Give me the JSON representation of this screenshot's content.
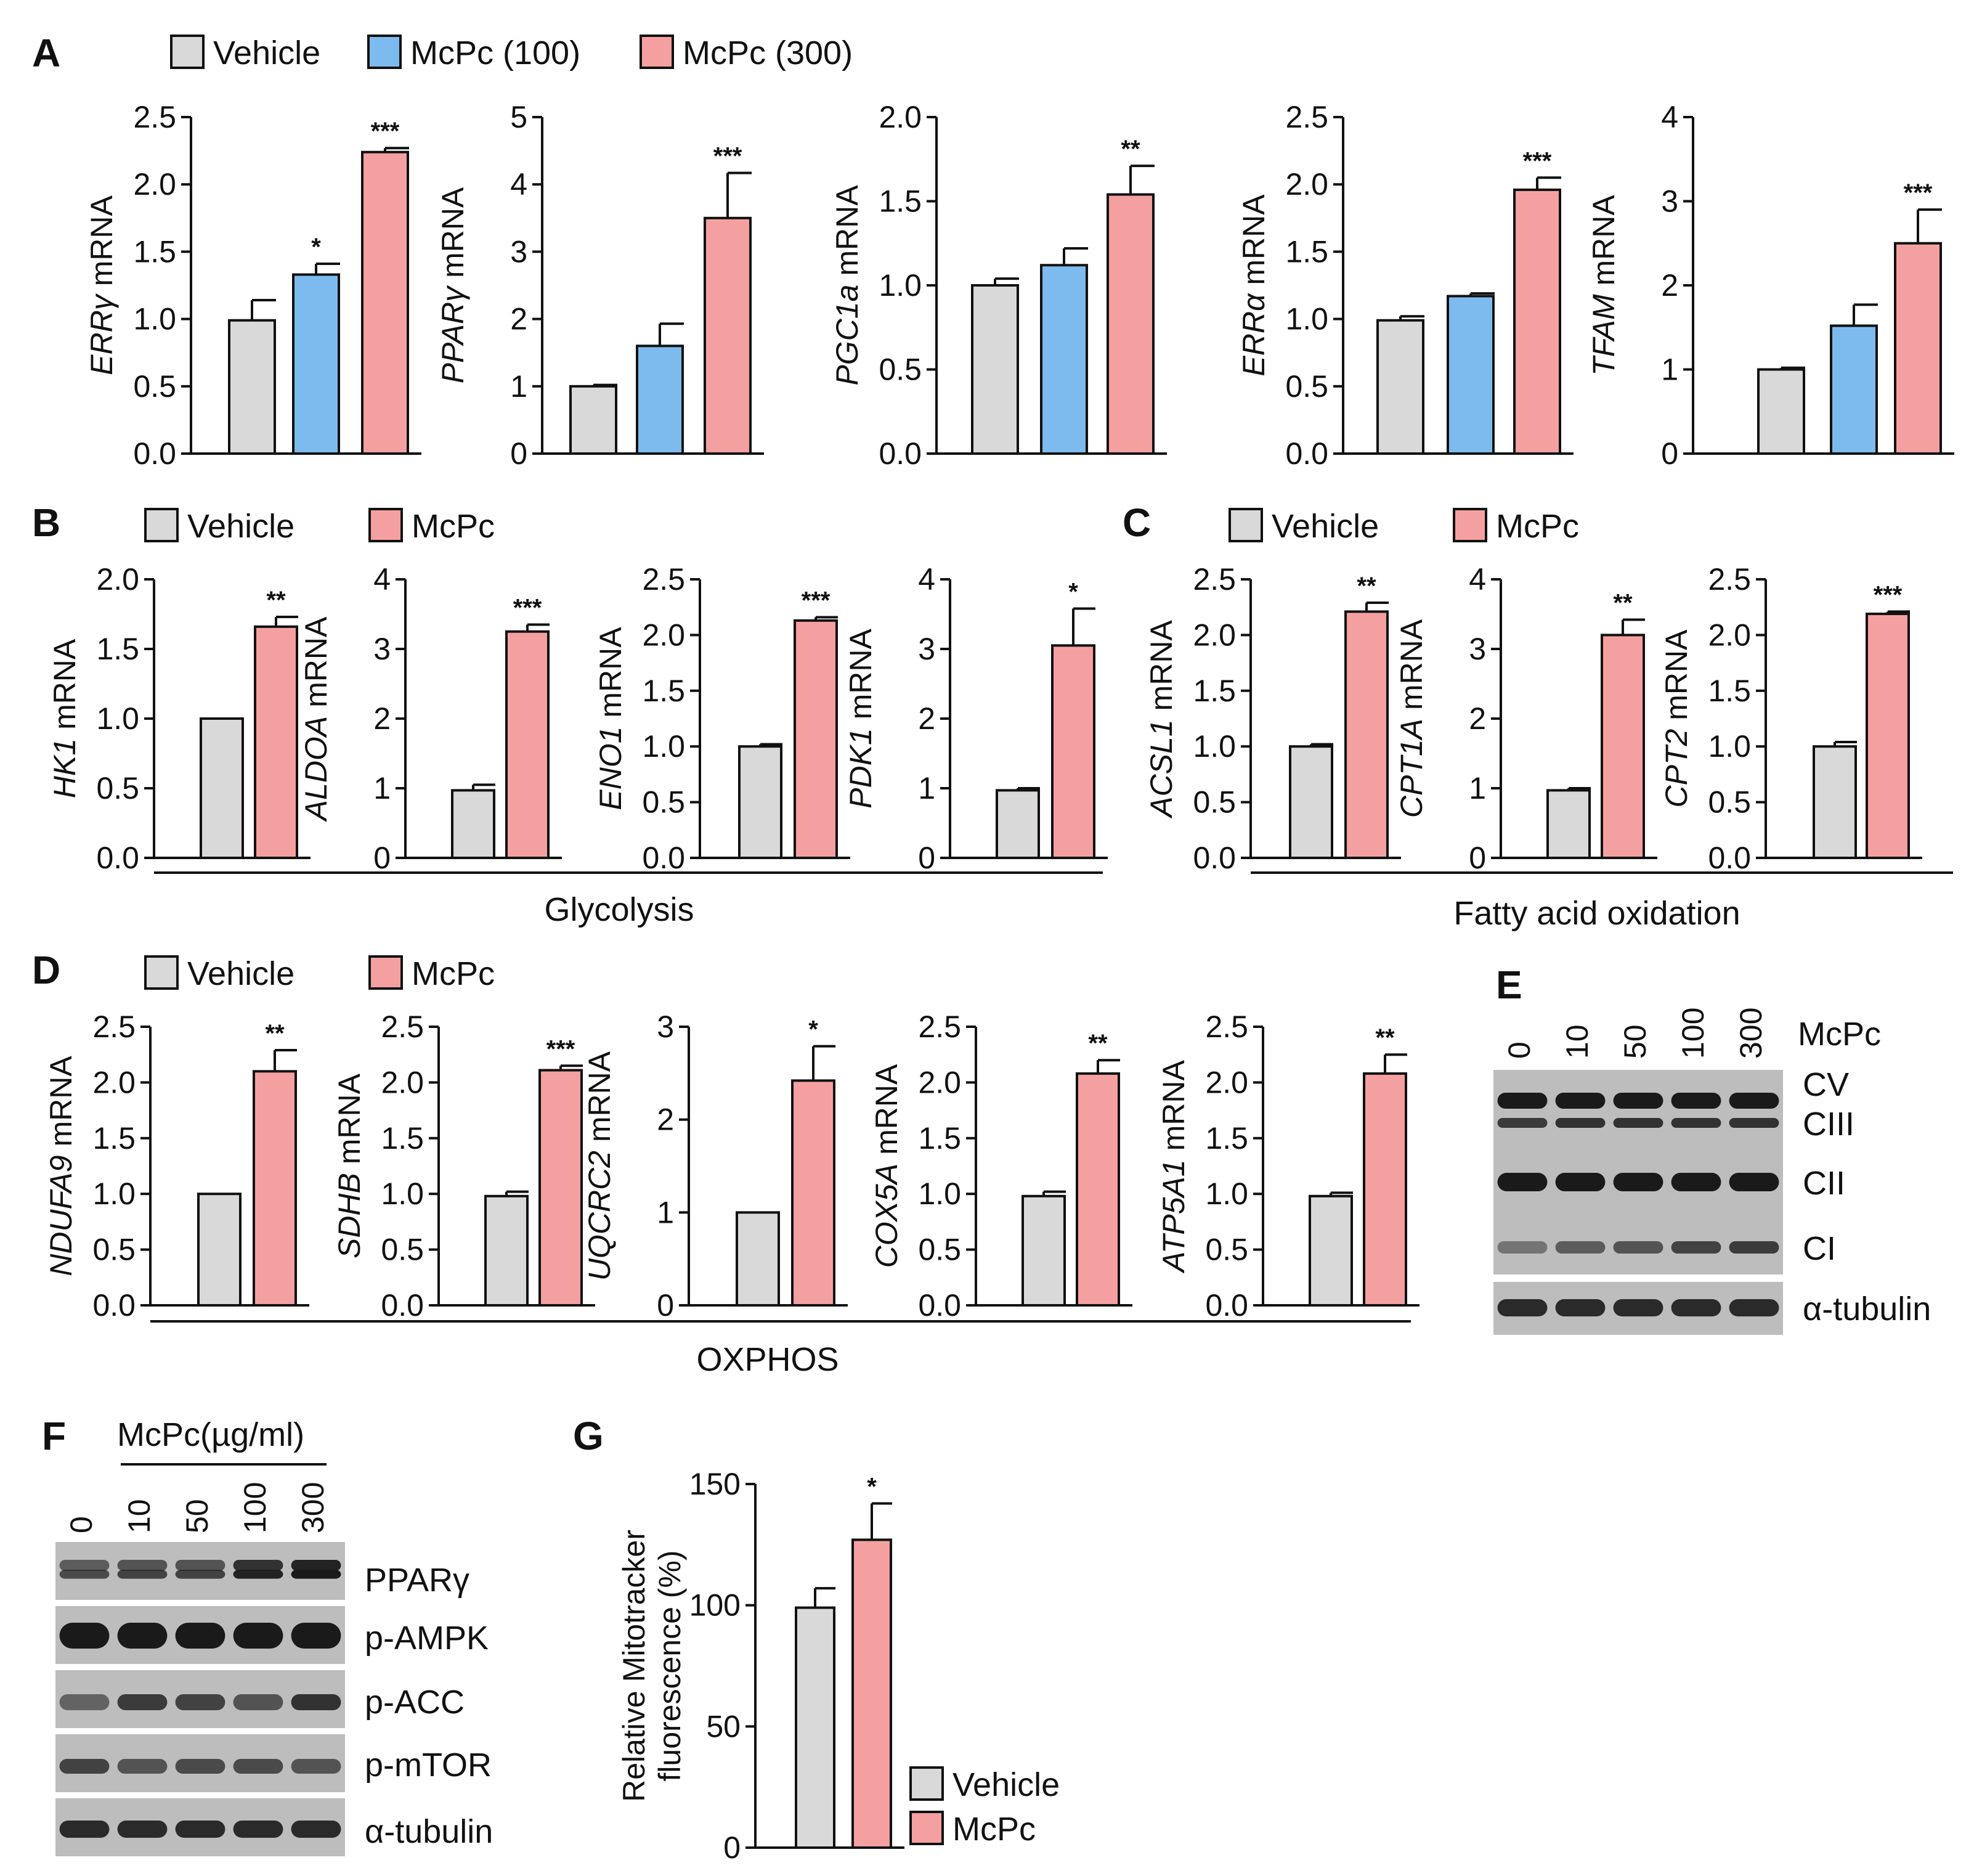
{
  "colors": {
    "vehicle": "#d9d9d9",
    "low": "#7dbbef",
    "high": "#f5a0a0",
    "blot_bg": "#bdbdbd",
    "band": "#1a1a1a"
  },
  "legends": {
    "A": [
      "Vehicle",
      "McPc (100)",
      "McPc (300)"
    ],
    "B": [
      "Vehicle",
      "McPc"
    ],
    "C": [
      "Vehicle",
      "McPc"
    ],
    "D": [
      "Vehicle",
      "McPc"
    ],
    "G": [
      "Vehicle",
      "McPc"
    ]
  },
  "groups": {
    "B": "Glycolysis",
    "C": "Fatty acid oxidation",
    "D": "OXPHOS"
  },
  "chart_data": [
    {
      "id": "A1",
      "panel": "A",
      "type": "bar",
      "gene": "ERRγ",
      "unit": "mRNA",
      "yticks": [
        "0.0",
        "0.5",
        "1.0",
        "1.5",
        "2.0",
        "2.5"
      ],
      "ylim": [
        0,
        2.5
      ],
      "categories": [
        "Vehicle",
        "McPc (100)",
        "McPc (300)"
      ],
      "values": [
        0.99,
        1.33,
        2.24
      ],
      "errors": [
        0.15,
        0.08,
        0.03
      ],
      "sig": [
        "",
        "*",
        "***"
      ]
    },
    {
      "id": "A2",
      "panel": "A",
      "type": "bar",
      "gene": "PPARγ",
      "unit": "mRNA",
      "yticks": [
        "0",
        "1",
        "2",
        "3",
        "4",
        "5"
      ],
      "ylim": [
        0,
        5
      ],
      "categories": [
        "Vehicle",
        "McPc (100)",
        "McPc (300)"
      ],
      "values": [
        1.0,
        1.6,
        3.5
      ],
      "errors": [
        0.02,
        0.33,
        0.67
      ],
      "sig": [
        "",
        "",
        "***"
      ]
    },
    {
      "id": "A3",
      "panel": "A",
      "type": "bar",
      "gene": "PGC1a",
      "unit": "mRNA",
      "yticks": [
        "0.0",
        "0.5",
        "1.0",
        "1.5",
        "2.0"
      ],
      "ylim": [
        0,
        2.0
      ],
      "categories": [
        "Vehicle",
        "McPc (100)",
        "McPc (300)"
      ],
      "values": [
        1.0,
        1.12,
        1.54
      ],
      "errors": [
        0.04,
        0.1,
        0.17
      ],
      "sig": [
        "",
        "",
        "**"
      ]
    },
    {
      "id": "A4",
      "panel": "A",
      "type": "bar",
      "gene": "ERRα",
      "unit": "mRNA",
      "yticks": [
        "0.0",
        "0.5",
        "1.0",
        "1.5",
        "2.0",
        "2.5"
      ],
      "ylim": [
        0,
        2.5
      ],
      "categories": [
        "Vehicle",
        "McPc (100)",
        "McPc (300)"
      ],
      "values": [
        0.99,
        1.17,
        1.96
      ],
      "errors": [
        0.03,
        0.02,
        0.09
      ],
      "sig": [
        "",
        "",
        "***"
      ]
    },
    {
      "id": "A5",
      "panel": "A",
      "type": "bar",
      "gene": "TFAM",
      "unit": "mRNA",
      "yticks": [
        "0",
        "1",
        "2",
        "3",
        "4"
      ],
      "ylim": [
        0,
        4
      ],
      "categories": [
        "Vehicle",
        "McPc (100)",
        "McPc (300)"
      ],
      "values": [
        1.0,
        1.52,
        2.5
      ],
      "errors": [
        0.02,
        0.25,
        0.4
      ],
      "sig": [
        "",
        "",
        "***"
      ]
    },
    {
      "id": "B1",
      "panel": "B",
      "type": "bar",
      "gene": "HK1",
      "unit": "mRNA",
      "yticks": [
        "0.0",
        "0.5",
        "1.0",
        "1.5",
        "2.0"
      ],
      "ylim": [
        0,
        2.0
      ],
      "categories": [
        "Vehicle",
        "McPc"
      ],
      "values": [
        1.0,
        1.66
      ],
      "errors": [
        0.0,
        0.07
      ],
      "sig": [
        "",
        "**"
      ]
    },
    {
      "id": "B2",
      "panel": "B",
      "type": "bar",
      "gene": "ALDOA",
      "unit": "mRNA",
      "yticks": [
        "0",
        "1",
        "2",
        "3",
        "4"
      ],
      "ylim": [
        0,
        4
      ],
      "categories": [
        "Vehicle",
        "McPc"
      ],
      "values": [
        0.97,
        3.25
      ],
      "errors": [
        0.08,
        0.1
      ],
      "sig": [
        "",
        "***"
      ]
    },
    {
      "id": "B3",
      "panel": "B",
      "type": "bar",
      "gene": "ENO1",
      "unit": "mRNA",
      "yticks": [
        "0.0",
        "0.5",
        "1.0",
        "1.5",
        "2.0",
        "2.5"
      ],
      "ylim": [
        0,
        2.5
      ],
      "categories": [
        "Vehicle",
        "McPc"
      ],
      "values": [
        1.0,
        2.13
      ],
      "errors": [
        0.02,
        0.03
      ],
      "sig": [
        "",
        "***"
      ]
    },
    {
      "id": "B4",
      "panel": "B",
      "type": "bar",
      "gene": "PDK1",
      "unit": "mRNA",
      "yticks": [
        "0",
        "1",
        "2",
        "3",
        "4"
      ],
      "ylim": [
        0,
        4
      ],
      "categories": [
        "Vehicle",
        "McPc"
      ],
      "values": [
        0.97,
        3.05
      ],
      "errors": [
        0.03,
        0.53
      ],
      "sig": [
        "",
        "*"
      ]
    },
    {
      "id": "C1",
      "panel": "C",
      "type": "bar",
      "gene": "ACSL1",
      "unit": "mRNA",
      "yticks": [
        "0.0",
        "0.5",
        "1.0",
        "1.5",
        "2.0",
        "2.5"
      ],
      "ylim": [
        0,
        2.5
      ],
      "categories": [
        "Vehicle",
        "McPc"
      ],
      "values": [
        1.0,
        2.21
      ],
      "errors": [
        0.02,
        0.08
      ],
      "sig": [
        "",
        "**"
      ]
    },
    {
      "id": "C2",
      "panel": "C",
      "type": "bar",
      "gene": "CPT1A",
      "unit": "mRNA",
      "yticks": [
        "0",
        "1",
        "2",
        "3",
        "4"
      ],
      "ylim": [
        0,
        4
      ],
      "categories": [
        "Vehicle",
        "McPc"
      ],
      "values": [
        0.97,
        3.2
      ],
      "errors": [
        0.03,
        0.22
      ],
      "sig": [
        "",
        "**"
      ]
    },
    {
      "id": "C3",
      "panel": "C",
      "type": "bar",
      "gene": "CPT2",
      "unit": "mRNA",
      "yticks": [
        "0.0",
        "0.5",
        "1.0",
        "1.5",
        "2.0",
        "2.5"
      ],
      "ylim": [
        0,
        2.5
      ],
      "categories": [
        "Vehicle",
        "McPc"
      ],
      "values": [
        1.0,
        2.19
      ],
      "errors": [
        0.04,
        0.02
      ],
      "sig": [
        "",
        "***"
      ]
    },
    {
      "id": "D1",
      "panel": "D",
      "type": "bar",
      "gene": "NDUFA9",
      "unit": "mRNA",
      "yticks": [
        "0.0",
        "0.5",
        "1.0",
        "1.5",
        "2.0",
        "2.5"
      ],
      "ylim": [
        0,
        2.5
      ],
      "categories": [
        "Vehicle",
        "McPc"
      ],
      "values": [
        1.0,
        2.1
      ],
      "errors": [
        0.0,
        0.19
      ],
      "sig": [
        "",
        "**"
      ]
    },
    {
      "id": "D2",
      "panel": "D",
      "type": "bar",
      "gene": "SDHB",
      "unit": "mRNA",
      "yticks": [
        "0.0",
        "0.5",
        "1.0",
        "1.5",
        "2.0",
        "2.5"
      ],
      "ylim": [
        0,
        2.5
      ],
      "categories": [
        "Vehicle",
        "McPc"
      ],
      "values": [
        0.98,
        2.11
      ],
      "errors": [
        0.04,
        0.04
      ],
      "sig": [
        "",
        "***"
      ]
    },
    {
      "id": "D3",
      "panel": "D",
      "type": "bar",
      "gene": "UQCRC2",
      "unit": "mRNA",
      "yticks": [
        "0",
        "1",
        "2",
        "3"
      ],
      "ylim": [
        0,
        3
      ],
      "categories": [
        "Vehicle",
        "McPc"
      ],
      "values": [
        1.0,
        2.42
      ],
      "errors": [
        0.0,
        0.37
      ],
      "sig": [
        "",
        "*"
      ]
    },
    {
      "id": "D4",
      "panel": "D",
      "type": "bar",
      "gene": "COX5A",
      "unit": "mRNA",
      "yticks": [
        "0.0",
        "0.5",
        "1.0",
        "1.5",
        "2.0",
        "2.5"
      ],
      "ylim": [
        0,
        2.5
      ],
      "categories": [
        "Vehicle",
        "McPc"
      ],
      "values": [
        0.98,
        2.08
      ],
      "errors": [
        0.04,
        0.12
      ],
      "sig": [
        "",
        "**"
      ]
    },
    {
      "id": "D5",
      "panel": "D",
      "type": "bar",
      "gene": "ATP5A1",
      "unit": "mRNA",
      "yticks": [
        "0.0",
        "0.5",
        "1.0",
        "1.5",
        "2.0",
        "2.5"
      ],
      "ylim": [
        0,
        2.5
      ],
      "categories": [
        "Vehicle",
        "McPc"
      ],
      "values": [
        0.98,
        2.08
      ],
      "errors": [
        0.03,
        0.17
      ],
      "sig": [
        "",
        "**"
      ]
    },
    {
      "id": "G1",
      "panel": "G",
      "type": "bar",
      "ylabel_lines": [
        "Relative Mitotracker",
        "fluorescence (%)"
      ],
      "yticks": [
        "0",
        "50",
        "100",
        "150"
      ],
      "ylim": [
        0,
        150
      ],
      "categories": [
        "Vehicle",
        "McPc"
      ],
      "values": [
        99,
        127
      ],
      "errors": [
        8,
        15
      ],
      "sig": [
        "",
        "*"
      ]
    }
  ],
  "blots": {
    "E": {
      "label": "McPc",
      "lanes": [
        "0",
        "10",
        "50",
        "100",
        "300"
      ],
      "bands": [
        "CV",
        "CIII",
        "CII",
        "CI",
        "α-tubulin"
      ],
      "intensity": {
        "CV": [
          1,
          1,
          1,
          1,
          1
        ],
        "CIII": [
          0.8,
          0.85,
          0.85,
          0.85,
          0.85
        ],
        "CII": [
          1,
          1,
          1,
          1,
          1
        ],
        "CI": [
          0.45,
          0.6,
          0.65,
          0.75,
          0.8
        ],
        "α-tubulin": [
          0.9,
          0.9,
          0.9,
          0.9,
          0.9
        ]
      }
    },
    "F": {
      "label": "McPc(µg/ml)",
      "lanes": [
        "0",
        "10",
        "50",
        "100",
        "300"
      ],
      "bands": [
        "PPARγ",
        "p-AMPK",
        "p-ACC",
        "p-mTOR",
        "α-tubulin"
      ],
      "intensity": {
        "PPARγ": [
          0.6,
          0.65,
          0.65,
          0.85,
          0.95
        ],
        "p-AMPK": [
          1,
          1,
          1,
          1,
          1
        ],
        "p-ACC": [
          0.55,
          0.8,
          0.75,
          0.65,
          0.85
        ],
        "p-mTOR": [
          0.75,
          0.65,
          0.7,
          0.7,
          0.65
        ],
        "α-tubulin": [
          0.9,
          0.9,
          0.9,
          0.9,
          0.9
        ]
      }
    }
  }
}
